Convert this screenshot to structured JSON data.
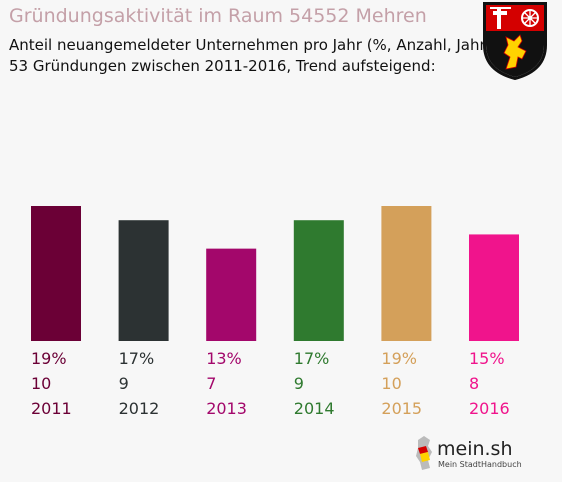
{
  "header": {
    "title": "Gründungsaktivität im Raum 54552 Mehren",
    "subtitle_line1": "Anteil neuangemeldeter Unternehmen pro Jahr (%, Anzahl, Jahr)",
    "subtitle_line2": "53 Gründungen zwischen 2011-2016, Trend aufsteigend:"
  },
  "logo": {
    "name": "mein.sh",
    "tagline": "Mein StadtHandbuch"
  },
  "crest": {
    "icon": "rhineland-palatinate-coat-of-arms-icon",
    "colors": [
      "#d40000",
      "#000000",
      "#ffd700",
      "#ffffff"
    ]
  },
  "chart_data": {
    "type": "bar",
    "categories": [
      "2011",
      "2012",
      "2013",
      "2014",
      "2015",
      "2016"
    ],
    "values": [
      19,
      17,
      13,
      17,
      19,
      15
    ],
    "counts": [
      10,
      9,
      7,
      9,
      10,
      8
    ],
    "labels_percent": [
      "19%",
      "17%",
      "13%",
      "17%",
      "19%",
      "15%"
    ],
    "colors": [
      "#6b0036",
      "#2c3233",
      "#a3076b",
      "#2f7a2f",
      "#d4a05a",
      "#f0148c"
    ],
    "grid": false,
    "ylim": [
      0,
      20
    ]
  }
}
